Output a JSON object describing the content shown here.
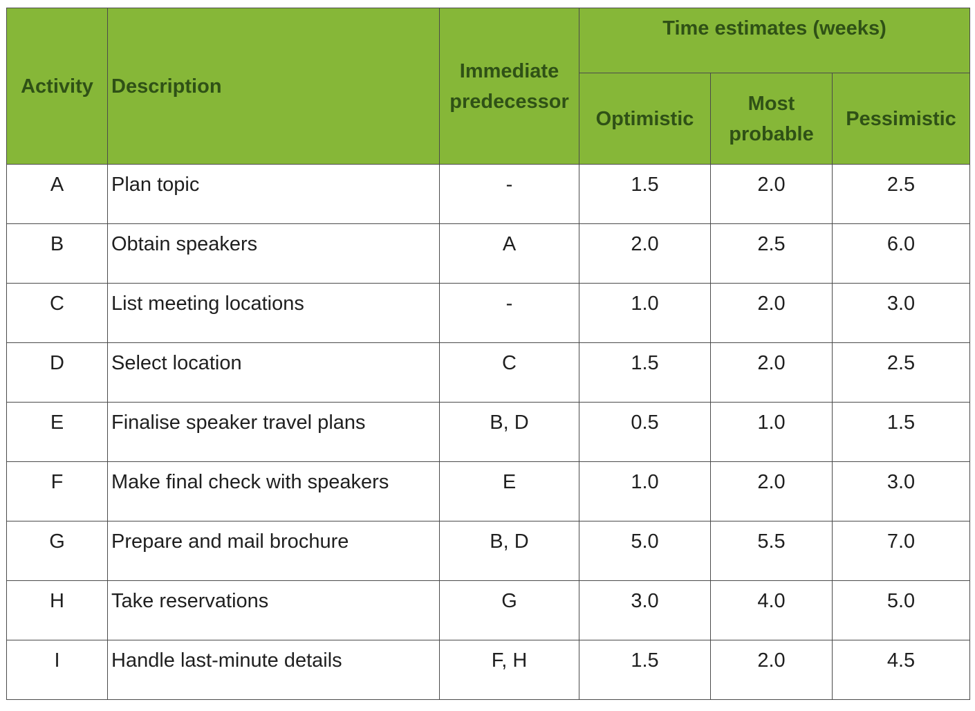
{
  "table": {
    "headers": {
      "activity": "Activity",
      "description": "Description",
      "predecessor_line1": "Immediate",
      "predecessor_line2": "predecessor",
      "time_group": "Time estimates (weeks)",
      "optimistic": "Optimistic",
      "most_probable_line1": "Most",
      "most_probable_line2": "probable",
      "pessimistic": "Pessimistic"
    },
    "rows": [
      {
        "activity": "A",
        "description": "Plan topic",
        "predecessor": "-",
        "optimistic": "1.5",
        "most_probable": "2.0",
        "pessimistic": "2.5"
      },
      {
        "activity": "B",
        "description": "Obtain speakers",
        "predecessor": "A",
        "optimistic": "2.0",
        "most_probable": "2.5",
        "pessimistic": "6.0"
      },
      {
        "activity": "C",
        "description": "List meeting locations",
        "predecessor": "-",
        "optimistic": "1.0",
        "most_probable": "2.0",
        "pessimistic": "3.0"
      },
      {
        "activity": "D",
        "description": "Select location",
        "predecessor": "C",
        "optimistic": "1.5",
        "most_probable": "2.0",
        "pessimistic": "2.5"
      },
      {
        "activity": "E",
        "description": "Finalise speaker travel plans",
        "predecessor": "B, D",
        "optimistic": "0.5",
        "most_probable": "1.0",
        "pessimistic": "1.5"
      },
      {
        "activity": "F",
        "description": "Make final check with speakers",
        "predecessor": "E",
        "optimistic": "1.0",
        "most_probable": "2.0",
        "pessimistic": "3.0"
      },
      {
        "activity": "G",
        "description": "Prepare and mail brochure",
        "predecessor": "B, D",
        "optimistic": "5.0",
        "most_probable": "5.5",
        "pessimistic": "7.0"
      },
      {
        "activity": "H",
        "description": "Take reservations",
        "predecessor": "G",
        "optimistic": "3.0",
        "most_probable": "4.0",
        "pessimistic": "5.0"
      },
      {
        "activity": "I",
        "description": "Handle last-minute details",
        "predecessor": "F, H",
        "optimistic": "1.5",
        "most_probable": "2.0",
        "pessimistic": "4.5"
      }
    ]
  },
  "colors": {
    "header_background": "#86b738",
    "header_text": "#2f5116",
    "border": "#4a4a4a"
  }
}
